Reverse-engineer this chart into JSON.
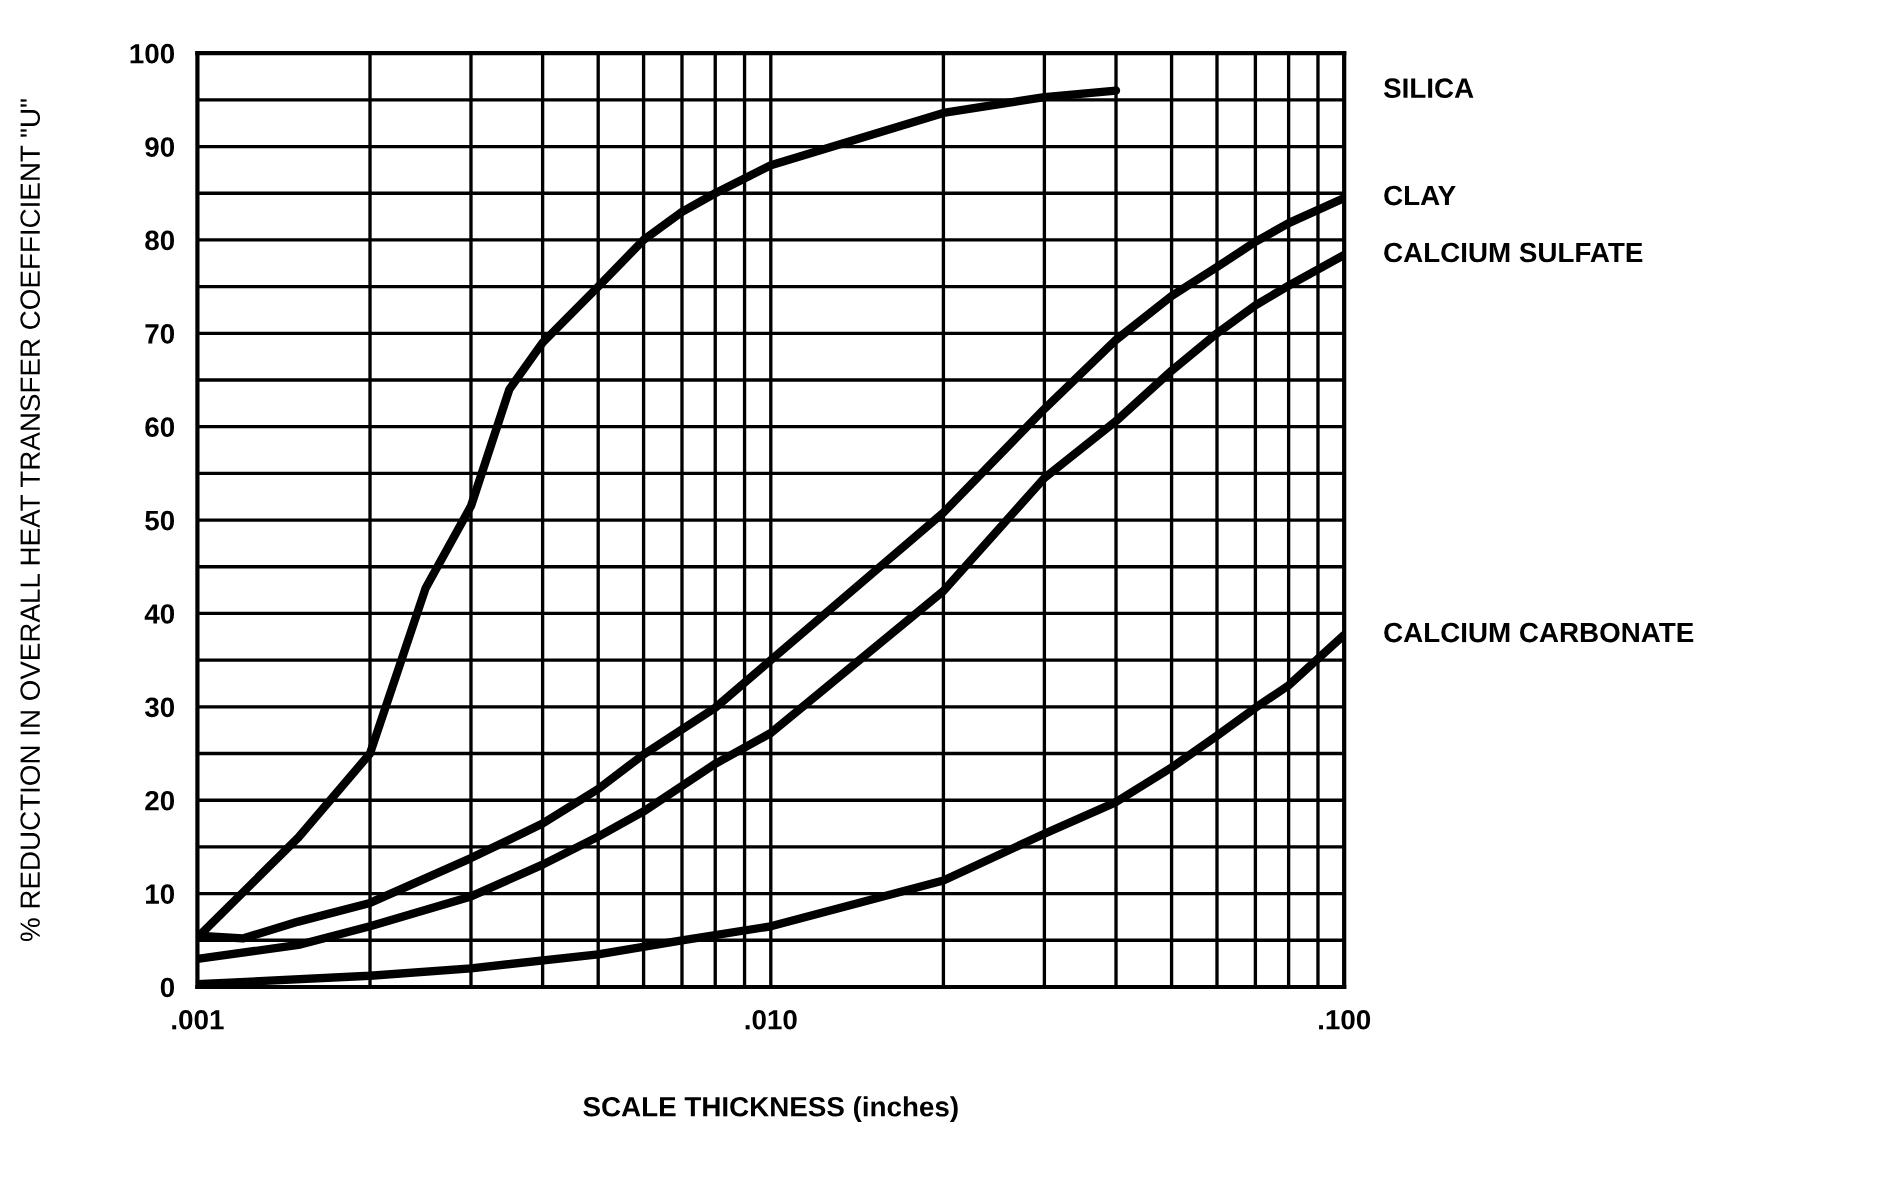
{
  "chart_data": {
    "type": "line",
    "xlabel": "SCALE THICKNESS (inches)",
    "ylabel": "% REDUCTION IN OVERALL HEAT TRANSFER COEFFICIENT \"U\"",
    "log": "x",
    "grid": true,
    "legend": false,
    "marker": "none",
    "line_style": "solid",
    "xlim": [
      0.001,
      0.1
    ],
    "ylim": [
      0,
      100
    ],
    "xticks": [
      {
        "value": 0.001,
        "label": ".001"
      },
      {
        "value": 0.002,
        "label": null
      },
      {
        "value": 0.003,
        "label": null
      },
      {
        "value": 0.004,
        "label": null
      },
      {
        "value": 0.005,
        "label": null
      },
      {
        "value": 0.006,
        "label": null
      },
      {
        "value": 0.007,
        "label": null
      },
      {
        "value": 0.008,
        "label": null
      },
      {
        "value": 0.009,
        "label": null
      },
      {
        "value": 0.01,
        "label": ".010"
      },
      {
        "value": 0.02,
        "label": null
      },
      {
        "value": 0.03,
        "label": null
      },
      {
        "value": 0.04,
        "label": null
      },
      {
        "value": 0.05,
        "label": null
      },
      {
        "value": 0.06,
        "label": null
      },
      {
        "value": 0.07,
        "label": null
      },
      {
        "value": 0.08,
        "label": null
      },
      {
        "value": 0.09,
        "label": null
      },
      {
        "value": 0.1,
        "label": ".100"
      }
    ],
    "yticks": [
      0,
      {
        "value": 5,
        "label": null
      },
      10,
      {
        "value": 15,
        "label": null
      },
      20,
      {
        "value": 25,
        "label": null
      },
      30,
      {
        "value": 35,
        "label": null
      },
      40,
      {
        "value": 45,
        "label": null
      },
      50,
      {
        "value": 55,
        "label": null
      },
      60,
      {
        "value": 65,
        "label": null
      },
      70,
      {
        "value": 75,
        "label": null
      },
      80,
      {
        "value": 85,
        "label": null
      },
      90,
      {
        "value": 95,
        "label": null
      },
      100
    ],
    "series": [
      {
        "name": "SILICA",
        "color": "#000000",
        "x": [
          0.001,
          0.0015,
          0.002,
          0.0025,
          0.003,
          0.0035,
          0.004,
          0.005,
          0.006,
          0.007,
          0.008,
          0.01,
          0.02,
          0.03,
          0.04
        ],
        "values": [
          5.3,
          16,
          25,
          42.7,
          51.5,
          64,
          69,
          75,
          80,
          83,
          85,
          88,
          93.6,
          95.3,
          96
        ]
      },
      {
        "name": "CLAY",
        "color": "#000000",
        "x": [
          0.001,
          0.0012,
          0.0015,
          0.002,
          0.003,
          0.004,
          0.005,
          0.006,
          0.008,
          0.01,
          0.02,
          0.03,
          0.04,
          0.05,
          0.06,
          0.07,
          0.08,
          0.1
        ],
        "values": [
          5.5,
          5.2,
          7,
          9,
          13.8,
          17.5,
          21.2,
          24.9,
          29.9,
          35,
          50.8,
          61.9,
          69.3,
          74,
          77.1,
          79.8,
          81.8,
          84.5
        ]
      },
      {
        "name": "CALCIUM SULFATE",
        "color": "#000000",
        "x": [
          0.001,
          0.0015,
          0.002,
          0.003,
          0.004,
          0.005,
          0.006,
          0.008,
          0.01,
          0.02,
          0.03,
          0.04,
          0.05,
          0.06,
          0.07,
          0.08,
          0.1
        ],
        "values": [
          3,
          4.5,
          6.5,
          9.7,
          13.1,
          16.1,
          18.8,
          23.9,
          27.2,
          42.4,
          54.5,
          60.6,
          66,
          70,
          73,
          75.1,
          78.4
        ]
      },
      {
        "name": "CALCIUM CARBONATE",
        "color": "#000000",
        "x": [
          0.001,
          0.002,
          0.003,
          0.005,
          0.007,
          0.01,
          0.02,
          0.03,
          0.04,
          0.05,
          0.06,
          0.07,
          0.08,
          0.1
        ],
        "values": [
          0.3,
          1.2,
          2,
          3.5,
          5,
          6.5,
          11.4,
          16.4,
          19.8,
          23.5,
          26.9,
          29.9,
          32.3,
          37.7
        ]
      }
    ]
  }
}
